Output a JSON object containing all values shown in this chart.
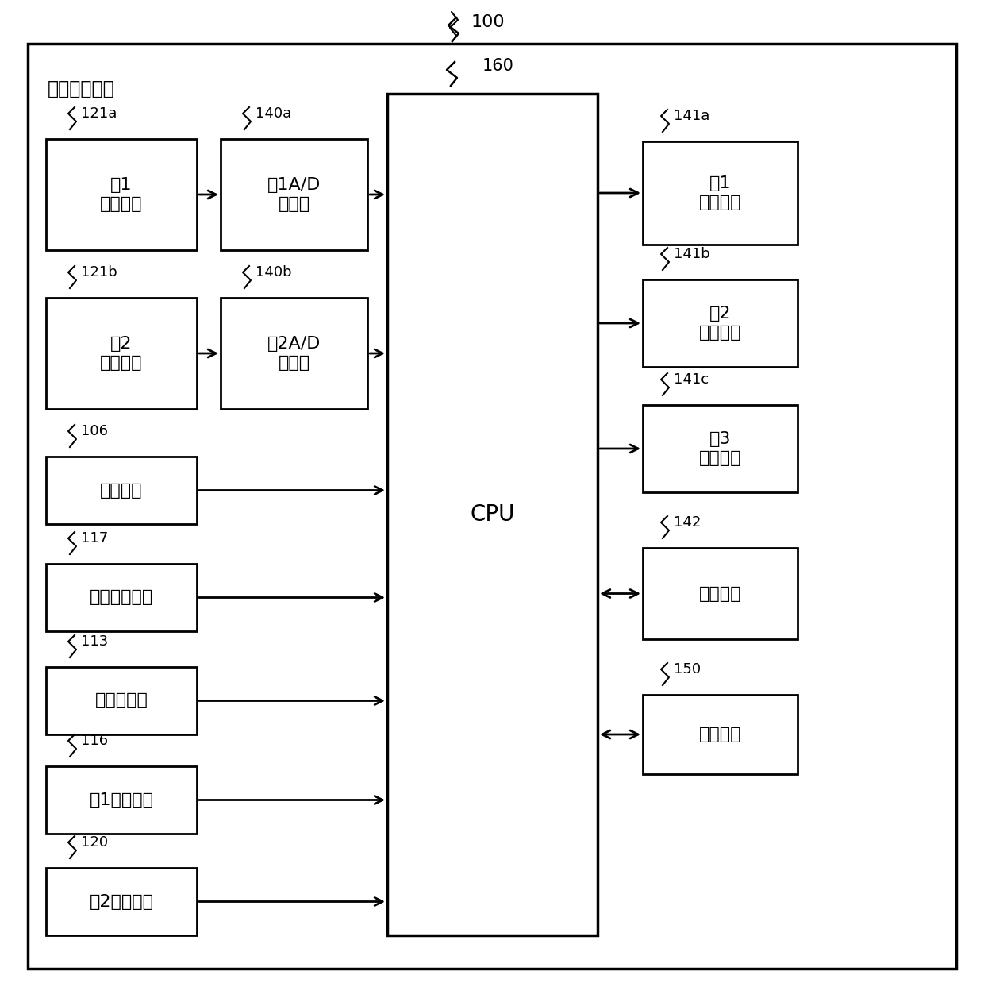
{
  "title": "100",
  "outer_label": "原稿输送装置",
  "bg_color": "#ffffff",
  "box_color": "#ffffff",
  "box_edge": "#000000",
  "cpu_label": "CPU",
  "cpu_ref": "160",
  "left_boxes": [
    {
      "label": "第1\n摄像装置",
      "ref": "121a"
    },
    {
      "label": "第2\n摄像装置",
      "ref": "121b"
    },
    {
      "label": "操作按鈕",
      "ref": "106"
    },
    {
      "label": "超声波传感器",
      "ref": "117"
    },
    {
      "label": "接触传感器",
      "ref": "113"
    },
    {
      "label": "第1光传感器",
      "ref": "116"
    },
    {
      "label": "第2光传感器",
      "ref": "120"
    }
  ],
  "mid_boxes": [
    {
      "label": "第1A/D\n转换器",
      "ref": "140a"
    },
    {
      "label": "第2A/D\n转换器",
      "ref": "140b"
    }
  ],
  "right_boxes": [
    {
      "label": "第1\n驱动装置",
      "ref": "141a",
      "arrow": "right"
    },
    {
      "label": "第2\n驱动装置",
      "ref": "141b",
      "arrow": "right"
    },
    {
      "label": "第3\n驱动装置",
      "ref": "141c",
      "arrow": "right"
    },
    {
      "label": "接口装置",
      "ref": "142",
      "arrow": "both"
    },
    {
      "label": "存储装置",
      "ref": "150",
      "arrow": "both"
    }
  ]
}
